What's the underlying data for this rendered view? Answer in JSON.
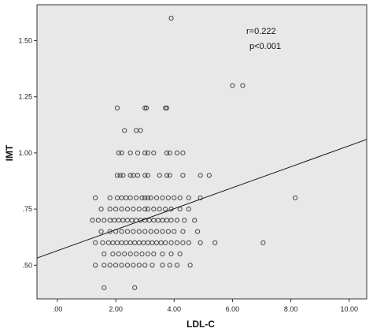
{
  "chart_data": {
    "type": "scatter",
    "xlabel": "LDL-C",
    "ylabel": "IMT",
    "xlim": [
      -0.7,
      10.6
    ],
    "ylim": [
      0.35,
      1.66
    ],
    "x_ticks": [
      0,
      2,
      4,
      6,
      8,
      10
    ],
    "x_tick_labels": [
      ".00",
      "2.00",
      "4.00",
      "6.00",
      "8.00",
      "10.00"
    ],
    "y_ticks": [
      0.5,
      0.75,
      1.0,
      1.25,
      1.5
    ],
    "y_tick_labels": [
      ".50",
      ".75",
      "1.00",
      "1.25",
      "1.50"
    ],
    "annotations": [
      "r=0.222",
      "p<0.001"
    ],
    "fit_line": {
      "x": [
        -0.7,
        10.6
      ],
      "y": [
        0.532,
        1.06
      ]
    },
    "grid": false,
    "points": [
      {
        "x": 3.9,
        "y": 1.6
      },
      {
        "x": 6.0,
        "y": 1.3
      },
      {
        "x": 6.35,
        "y": 1.3
      },
      {
        "x": 2.05,
        "y": 1.2
      },
      {
        "x": 3.0,
        "y": 1.2
      },
      {
        "x": 3.05,
        "y": 1.2
      },
      {
        "x": 3.7,
        "y": 1.2
      },
      {
        "x": 3.75,
        "y": 1.2
      },
      {
        "x": 2.3,
        "y": 1.1
      },
      {
        "x": 2.7,
        "y": 1.1
      },
      {
        "x": 2.85,
        "y": 1.1
      },
      {
        "x": 2.1,
        "y": 1.0
      },
      {
        "x": 2.2,
        "y": 1.0
      },
      {
        "x": 2.5,
        "y": 1.0
      },
      {
        "x": 2.75,
        "y": 1.0
      },
      {
        "x": 3.0,
        "y": 1.0
      },
      {
        "x": 3.1,
        "y": 1.0
      },
      {
        "x": 3.3,
        "y": 1.0
      },
      {
        "x": 3.75,
        "y": 1.0
      },
      {
        "x": 3.85,
        "y": 1.0
      },
      {
        "x": 4.1,
        "y": 1.0
      },
      {
        "x": 4.3,
        "y": 1.0
      },
      {
        "x": 2.05,
        "y": 0.9
      },
      {
        "x": 2.15,
        "y": 0.9
      },
      {
        "x": 2.25,
        "y": 0.9
      },
      {
        "x": 2.5,
        "y": 0.9
      },
      {
        "x": 2.6,
        "y": 0.9
      },
      {
        "x": 2.75,
        "y": 0.9
      },
      {
        "x": 3.0,
        "y": 0.9
      },
      {
        "x": 3.1,
        "y": 0.9
      },
      {
        "x": 3.5,
        "y": 0.9
      },
      {
        "x": 3.75,
        "y": 0.9
      },
      {
        "x": 3.85,
        "y": 0.9
      },
      {
        "x": 4.3,
        "y": 0.9
      },
      {
        "x": 4.9,
        "y": 0.9
      },
      {
        "x": 5.2,
        "y": 0.9
      },
      {
        "x": 1.3,
        "y": 0.8
      },
      {
        "x": 1.8,
        "y": 0.8
      },
      {
        "x": 2.05,
        "y": 0.8
      },
      {
        "x": 2.2,
        "y": 0.8
      },
      {
        "x": 2.35,
        "y": 0.8
      },
      {
        "x": 2.5,
        "y": 0.8
      },
      {
        "x": 2.7,
        "y": 0.8
      },
      {
        "x": 2.9,
        "y": 0.8
      },
      {
        "x": 3.0,
        "y": 0.8
      },
      {
        "x": 3.1,
        "y": 0.8
      },
      {
        "x": 3.2,
        "y": 0.8
      },
      {
        "x": 3.4,
        "y": 0.8
      },
      {
        "x": 3.6,
        "y": 0.8
      },
      {
        "x": 3.8,
        "y": 0.8
      },
      {
        "x": 4.0,
        "y": 0.8
      },
      {
        "x": 4.2,
        "y": 0.8
      },
      {
        "x": 4.5,
        "y": 0.8
      },
      {
        "x": 4.9,
        "y": 0.8
      },
      {
        "x": 8.15,
        "y": 0.8
      },
      {
        "x": 1.5,
        "y": 0.75
      },
      {
        "x": 1.8,
        "y": 0.75
      },
      {
        "x": 2.0,
        "y": 0.75
      },
      {
        "x": 2.2,
        "y": 0.75
      },
      {
        "x": 2.4,
        "y": 0.75
      },
      {
        "x": 2.6,
        "y": 0.75
      },
      {
        "x": 2.8,
        "y": 0.75
      },
      {
        "x": 3.0,
        "y": 0.75
      },
      {
        "x": 3.1,
        "y": 0.75
      },
      {
        "x": 3.3,
        "y": 0.75
      },
      {
        "x": 3.5,
        "y": 0.75
      },
      {
        "x": 3.7,
        "y": 0.75
      },
      {
        "x": 3.9,
        "y": 0.75
      },
      {
        "x": 4.2,
        "y": 0.75
      },
      {
        "x": 4.5,
        "y": 0.75
      },
      {
        "x": 1.2,
        "y": 0.7
      },
      {
        "x": 1.4,
        "y": 0.7
      },
      {
        "x": 1.6,
        "y": 0.7
      },
      {
        "x": 1.8,
        "y": 0.7
      },
      {
        "x": 1.95,
        "y": 0.7
      },
      {
        "x": 2.1,
        "y": 0.7
      },
      {
        "x": 2.25,
        "y": 0.7
      },
      {
        "x": 2.4,
        "y": 0.7
      },
      {
        "x": 2.55,
        "y": 0.7
      },
      {
        "x": 2.7,
        "y": 0.7
      },
      {
        "x": 2.85,
        "y": 0.7
      },
      {
        "x": 3.0,
        "y": 0.7
      },
      {
        "x": 3.15,
        "y": 0.7
      },
      {
        "x": 3.3,
        "y": 0.7
      },
      {
        "x": 3.45,
        "y": 0.7
      },
      {
        "x": 3.6,
        "y": 0.7
      },
      {
        "x": 3.75,
        "y": 0.7
      },
      {
        "x": 3.9,
        "y": 0.7
      },
      {
        "x": 4.1,
        "y": 0.7
      },
      {
        "x": 4.35,
        "y": 0.7
      },
      {
        "x": 4.7,
        "y": 0.7
      },
      {
        "x": 1.5,
        "y": 0.65
      },
      {
        "x": 1.8,
        "y": 0.65
      },
      {
        "x": 2.0,
        "y": 0.65
      },
      {
        "x": 2.2,
        "y": 0.65
      },
      {
        "x": 2.4,
        "y": 0.65
      },
      {
        "x": 2.6,
        "y": 0.65
      },
      {
        "x": 2.8,
        "y": 0.65
      },
      {
        "x": 3.0,
        "y": 0.65
      },
      {
        "x": 3.2,
        "y": 0.65
      },
      {
        "x": 3.4,
        "y": 0.65
      },
      {
        "x": 3.6,
        "y": 0.65
      },
      {
        "x": 3.8,
        "y": 0.65
      },
      {
        "x": 4.0,
        "y": 0.65
      },
      {
        "x": 4.3,
        "y": 0.65
      },
      {
        "x": 4.8,
        "y": 0.65
      },
      {
        "x": 1.3,
        "y": 0.6
      },
      {
        "x": 1.55,
        "y": 0.6
      },
      {
        "x": 1.75,
        "y": 0.6
      },
      {
        "x": 1.9,
        "y": 0.6
      },
      {
        "x": 2.05,
        "y": 0.6
      },
      {
        "x": 2.2,
        "y": 0.6
      },
      {
        "x": 2.35,
        "y": 0.6
      },
      {
        "x": 2.5,
        "y": 0.6
      },
      {
        "x": 2.65,
        "y": 0.6
      },
      {
        "x": 2.8,
        "y": 0.6
      },
      {
        "x": 2.95,
        "y": 0.6
      },
      {
        "x": 3.1,
        "y": 0.6
      },
      {
        "x": 3.25,
        "y": 0.6
      },
      {
        "x": 3.4,
        "y": 0.6
      },
      {
        "x": 3.55,
        "y": 0.6
      },
      {
        "x": 3.7,
        "y": 0.6
      },
      {
        "x": 3.9,
        "y": 0.6
      },
      {
        "x": 4.1,
        "y": 0.6
      },
      {
        "x": 4.3,
        "y": 0.6
      },
      {
        "x": 4.5,
        "y": 0.6
      },
      {
        "x": 4.9,
        "y": 0.6
      },
      {
        "x": 5.4,
        "y": 0.6
      },
      {
        "x": 7.05,
        "y": 0.6
      },
      {
        "x": 1.6,
        "y": 0.55
      },
      {
        "x": 1.9,
        "y": 0.55
      },
      {
        "x": 2.1,
        "y": 0.55
      },
      {
        "x": 2.3,
        "y": 0.55
      },
      {
        "x": 2.5,
        "y": 0.55
      },
      {
        "x": 2.7,
        "y": 0.55
      },
      {
        "x": 2.9,
        "y": 0.55
      },
      {
        "x": 3.1,
        "y": 0.55
      },
      {
        "x": 3.3,
        "y": 0.55
      },
      {
        "x": 3.6,
        "y": 0.55
      },
      {
        "x": 3.9,
        "y": 0.55
      },
      {
        "x": 4.2,
        "y": 0.55
      },
      {
        "x": 1.3,
        "y": 0.5
      },
      {
        "x": 1.6,
        "y": 0.5
      },
      {
        "x": 1.8,
        "y": 0.5
      },
      {
        "x": 2.0,
        "y": 0.5
      },
      {
        "x": 2.2,
        "y": 0.5
      },
      {
        "x": 2.4,
        "y": 0.5
      },
      {
        "x": 2.6,
        "y": 0.5
      },
      {
        "x": 2.8,
        "y": 0.5
      },
      {
        "x": 3.0,
        "y": 0.5
      },
      {
        "x": 3.25,
        "y": 0.5
      },
      {
        "x": 3.6,
        "y": 0.5
      },
      {
        "x": 3.85,
        "y": 0.5
      },
      {
        "x": 4.1,
        "y": 0.5
      },
      {
        "x": 4.55,
        "y": 0.5
      },
      {
        "x": 1.6,
        "y": 0.4
      },
      {
        "x": 2.65,
        "y": 0.4
      }
    ]
  }
}
